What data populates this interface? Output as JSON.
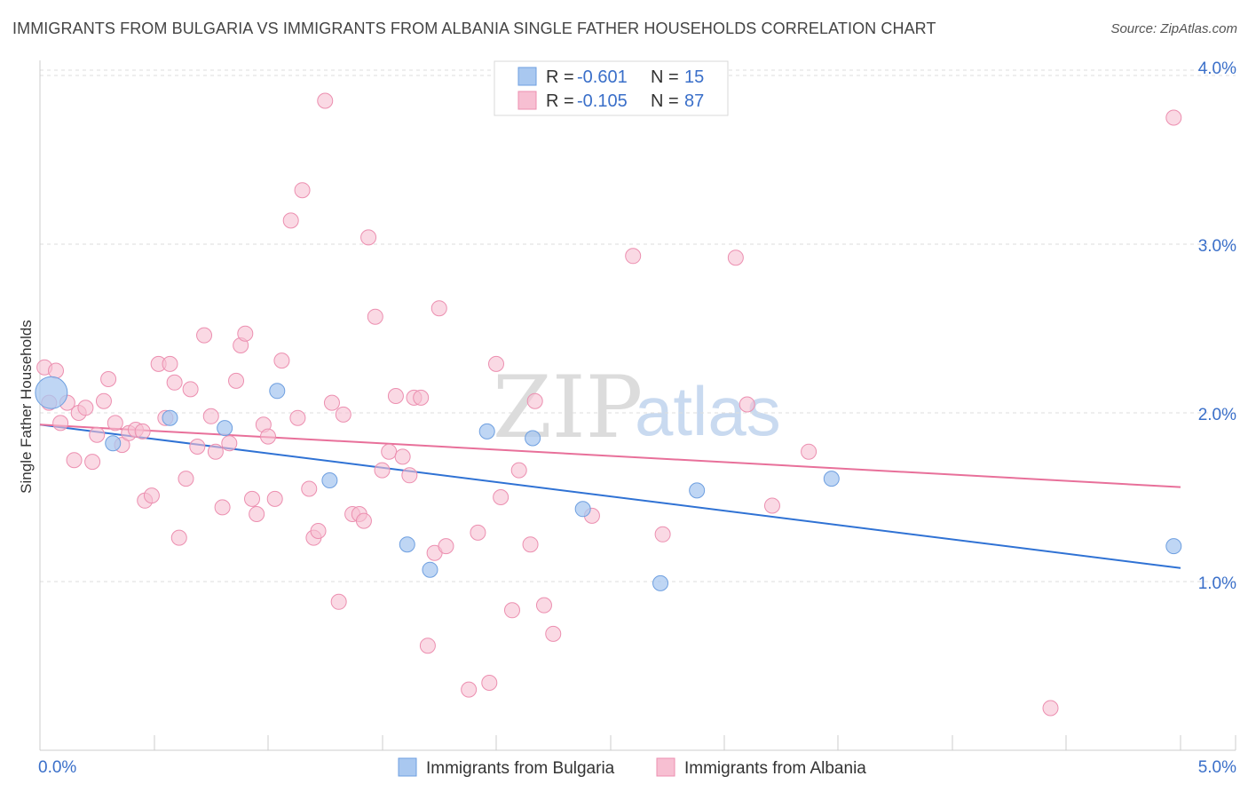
{
  "title": "IMMIGRANTS FROM BULGARIA VS IMMIGRANTS FROM ALBANIA SINGLE FATHER HOUSEHOLDS CORRELATION CHART",
  "source": "Source: ZipAtlas.com",
  "watermark": {
    "zip": "ZIP",
    "atlas": "atlas"
  },
  "colors": {
    "bulgaria_fill": "#a9c8f0",
    "bulgaria_stroke": "#6e9fe0",
    "bulgaria_line": "#2f72d4",
    "albania_fill": "#f7bfd2",
    "albania_stroke": "#ec8fb0",
    "albania_line": "#e8709a",
    "grid": "#dddddd",
    "axis_text": "#3a6fc9"
  },
  "legend": {
    "rows": [
      {
        "r_label": "R =",
        "r_value": "-0.601",
        "n_label": "N =",
        "n_value": "15"
      },
      {
        "r_label": "R =",
        "r_value": "-0.105",
        "n_label": "N =",
        "n_value": "87"
      }
    ]
  },
  "bottom_legend": {
    "items": [
      {
        "label": "Immigrants from Bulgaria"
      },
      {
        "label": "Immigrants from Albania"
      }
    ]
  },
  "chart_data": {
    "type": "scatter",
    "title": "IMMIGRANTS FROM BULGARIA VS IMMIGRANTS FROM ALBANIA SINGLE FATHER HOUSEHOLDS CORRELATION CHART",
    "xlabel": "",
    "ylabel": "Single Father Households",
    "xlim": [
      0,
      5
    ],
    "ylim": [
      0,
      4.1
    ],
    "x_tick_labels": [
      {
        "value": 0,
        "label": "0.0%"
      },
      {
        "value": 5,
        "label": "5.0%"
      }
    ],
    "y_tick_labels": [
      {
        "value": 1,
        "label": "1.0%"
      },
      {
        "value": 2,
        "label": "2.0%"
      },
      {
        "value": 3,
        "label": "3.0%"
      },
      {
        "value": 4,
        "label": "4.0%"
      }
    ],
    "grid": true,
    "series": [
      {
        "name": "Immigrants from Bulgaria",
        "r": -0.601,
        "n": 15,
        "trend": {
          "x0": 0,
          "y0": 1.93,
          "x1": 5,
          "y1": 1.08
        },
        "points": [
          {
            "x": 0.05,
            "y": 2.12,
            "big": true
          },
          {
            "x": 0.32,
            "y": 1.82
          },
          {
            "x": 0.57,
            "y": 1.97
          },
          {
            "x": 0.81,
            "y": 1.91
          },
          {
            "x": 1.04,
            "y": 2.13
          },
          {
            "x": 1.27,
            "y": 1.6
          },
          {
            "x": 1.61,
            "y": 1.22
          },
          {
            "x": 1.71,
            "y": 1.07
          },
          {
            "x": 1.96,
            "y": 1.89
          },
          {
            "x": 2.16,
            "y": 1.85
          },
          {
            "x": 2.38,
            "y": 1.43
          },
          {
            "x": 2.72,
            "y": 0.99
          },
          {
            "x": 2.88,
            "y": 1.54
          },
          {
            "x": 3.47,
            "y": 1.61
          },
          {
            "x": 4.97,
            "y": 1.21
          }
        ]
      },
      {
        "name": "Immigrants from Albania",
        "r": -0.105,
        "n": 87,
        "trend": {
          "x0": 0,
          "y0": 1.93,
          "x1": 5,
          "y1": 1.56
        },
        "points": [
          {
            "x": 0.02,
            "y": 2.27
          },
          {
            "x": 0.07,
            "y": 2.25
          },
          {
            "x": 0.04,
            "y": 2.06
          },
          {
            "x": 0.09,
            "y": 1.94
          },
          {
            "x": 0.12,
            "y": 2.06
          },
          {
            "x": 0.15,
            "y": 1.72
          },
          {
            "x": 0.17,
            "y": 2.0
          },
          {
            "x": 0.2,
            "y": 2.03
          },
          {
            "x": 0.23,
            "y": 1.71
          },
          {
            "x": 0.25,
            "y": 1.87
          },
          {
            "x": 0.28,
            "y": 2.07
          },
          {
            "x": 0.3,
            "y": 2.2
          },
          {
            "x": 0.33,
            "y": 1.94
          },
          {
            "x": 0.36,
            "y": 1.81
          },
          {
            "x": 0.39,
            "y": 1.88
          },
          {
            "x": 0.42,
            "y": 1.9
          },
          {
            "x": 0.45,
            "y": 1.89
          },
          {
            "x": 0.46,
            "y": 1.48
          },
          {
            "x": 0.49,
            "y": 1.51
          },
          {
            "x": 0.52,
            "y": 2.29
          },
          {
            "x": 0.55,
            "y": 1.97
          },
          {
            "x": 0.57,
            "y": 2.29
          },
          {
            "x": 0.59,
            "y": 2.18
          },
          {
            "x": 0.61,
            "y": 1.26
          },
          {
            "x": 0.64,
            "y": 1.61
          },
          {
            "x": 0.66,
            "y": 2.14
          },
          {
            "x": 0.69,
            "y": 1.8
          },
          {
            "x": 0.72,
            "y": 2.46
          },
          {
            "x": 0.75,
            "y": 1.98
          },
          {
            "x": 0.77,
            "y": 1.77
          },
          {
            "x": 0.8,
            "y": 1.44
          },
          {
            "x": 0.83,
            "y": 1.82
          },
          {
            "x": 0.86,
            "y": 2.19
          },
          {
            "x": 0.88,
            "y": 2.4
          },
          {
            "x": 0.9,
            "y": 2.47
          },
          {
            "x": 0.93,
            "y": 1.49
          },
          {
            "x": 0.95,
            "y": 1.4
          },
          {
            "x": 0.98,
            "y": 1.93
          },
          {
            "x": 1.0,
            "y": 1.86
          },
          {
            "x": 1.03,
            "y": 1.49
          },
          {
            "x": 1.06,
            "y": 2.31
          },
          {
            "x": 1.1,
            "y": 3.14
          },
          {
            "x": 1.13,
            "y": 1.97
          },
          {
            "x": 1.15,
            "y": 3.32
          },
          {
            "x": 1.18,
            "y": 1.55
          },
          {
            "x": 1.2,
            "y": 1.26
          },
          {
            "x": 1.22,
            "y": 1.3
          },
          {
            "x": 1.25,
            "y": 3.85
          },
          {
            "x": 1.28,
            "y": 2.06
          },
          {
            "x": 1.31,
            "y": 0.88
          },
          {
            "x": 1.33,
            "y": 1.99
          },
          {
            "x": 1.37,
            "y": 1.4
          },
          {
            "x": 1.4,
            "y": 1.4
          },
          {
            "x": 1.42,
            "y": 1.36
          },
          {
            "x": 1.44,
            "y": 3.04
          },
          {
            "x": 1.47,
            "y": 2.57
          },
          {
            "x": 1.5,
            "y": 1.66
          },
          {
            "x": 1.53,
            "y": 1.77
          },
          {
            "x": 1.56,
            "y": 2.1
          },
          {
            "x": 1.59,
            "y": 1.74
          },
          {
            "x": 1.62,
            "y": 1.63
          },
          {
            "x": 1.64,
            "y": 2.09
          },
          {
            "x": 1.67,
            "y": 2.09
          },
          {
            "x": 1.7,
            "y": 0.62
          },
          {
            "x": 1.73,
            "y": 1.17
          },
          {
            "x": 1.75,
            "y": 2.62
          },
          {
            "x": 1.78,
            "y": 1.21
          },
          {
            "x": 1.88,
            "y": 0.36
          },
          {
            "x": 1.92,
            "y": 1.29
          },
          {
            "x": 1.97,
            "y": 0.4
          },
          {
            "x": 2.0,
            "y": 2.29
          },
          {
            "x": 2.02,
            "y": 1.5
          },
          {
            "x": 2.07,
            "y": 0.83
          },
          {
            "x": 2.1,
            "y": 1.66
          },
          {
            "x": 2.15,
            "y": 1.22
          },
          {
            "x": 2.17,
            "y": 2.07
          },
          {
            "x": 2.21,
            "y": 0.86
          },
          {
            "x": 2.25,
            "y": 0.69
          },
          {
            "x": 2.42,
            "y": 1.39
          },
          {
            "x": 2.6,
            "y": 2.93
          },
          {
            "x": 2.73,
            "y": 1.28
          },
          {
            "x": 3.05,
            "y": 2.92
          },
          {
            "x": 3.1,
            "y": 2.05
          },
          {
            "x": 3.21,
            "y": 1.45
          },
          {
            "x": 3.37,
            "y": 1.77
          },
          {
            "x": 4.43,
            "y": 0.25
          },
          {
            "x": 4.97,
            "y": 3.75
          }
        ]
      }
    ]
  }
}
